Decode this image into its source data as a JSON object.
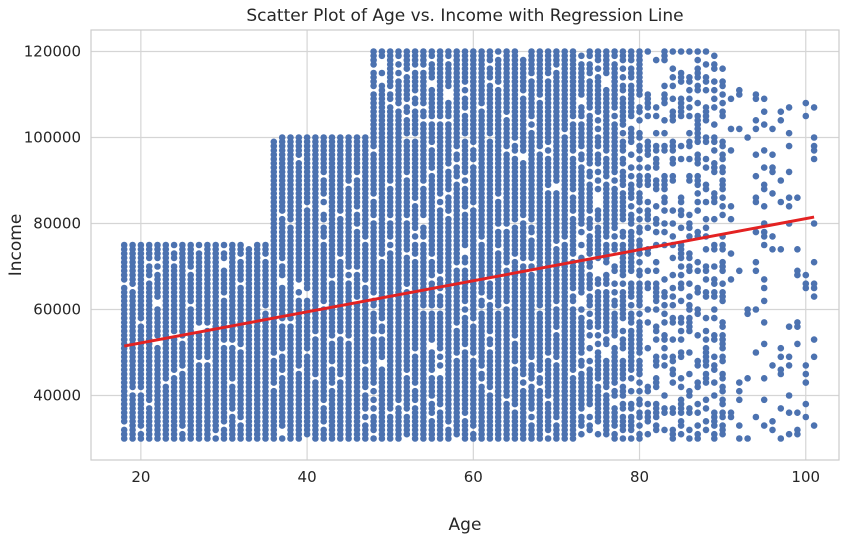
{
  "chart_data": {
    "type": "scatter",
    "title": "Scatter Plot of Age vs. Income with Regression Line",
    "xlabel": "Age",
    "ylabel": "Income",
    "xlim": [
      14,
      104
    ],
    "ylim": [
      25000,
      125000
    ],
    "x_ticks": [
      20,
      40,
      60,
      80,
      100
    ],
    "y_ticks": [
      40000,
      60000,
      80000,
      100000,
      120000
    ],
    "x_tick_labels": [
      "20",
      "40",
      "60",
      "80",
      "100"
    ],
    "y_tick_labels": [
      "40000",
      "60000",
      "80000",
      "100000",
      "120000"
    ],
    "grid": true,
    "legend": "none",
    "point_color": "#4c72b0",
    "line_color": "#e32222",
    "regression": {
      "x": [
        18,
        101
      ],
      "y": [
        51500,
        81500
      ]
    },
    "series": [
      {
        "type": "band_scatter",
        "bands": [
          {
            "age_range": [
              18,
              35
            ],
            "income_range": [
              30000,
              75000
            ],
            "density": 1.0
          },
          {
            "age_range": [
              36,
              47
            ],
            "income_range": [
              30000,
              100000
            ],
            "density": 1.0
          },
          {
            "age_range": [
              48,
              72
            ],
            "income_range": [
              30000,
              120000
            ],
            "density": 1.0
          },
          {
            "age_range": [
              73,
              80
            ],
            "income_range": [
              30000,
              120000
            ],
            "density": 0.8
          },
          {
            "age_range": [
              81,
              90
            ],
            "income_range": [
              30000,
              120000
            ],
            "density": 0.45
          },
          {
            "age_range": [
              91,
              101
            ],
            "income_range": [
              30000,
              112000
            ],
            "density": 0.15
          }
        ]
      }
    ]
  }
}
